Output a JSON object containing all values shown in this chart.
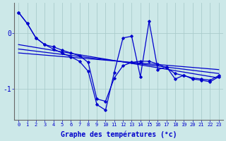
{
  "xlabel": "Graphe des températures (°c)",
  "background_color": "#cce8e8",
  "grid_color": "#aacccc",
  "line_color": "#0000cc",
  "x_ticks": [
    0,
    1,
    2,
    3,
    4,
    5,
    6,
    7,
    8,
    9,
    10,
    11,
    12,
    13,
    14,
    15,
    16,
    17,
    18,
    19,
    20,
    21,
    22,
    23
  ],
  "ylim": [
    -1.55,
    0.55
  ],
  "yticks": [
    -1,
    0
  ],
  "series_jagged": [
    0.38,
    0.18,
    -0.08,
    -0.2,
    -0.28,
    -0.35,
    -0.42,
    -0.5,
    -0.68,
    -1.28,
    -1.38,
    -0.7,
    -0.08,
    -0.05,
    -0.78,
    0.22,
    -0.65,
    -0.6,
    -0.82,
    -0.75,
    -0.82,
    -0.84,
    -0.87,
    -0.78
  ],
  "series_smooth": [
    0.38,
    0.18,
    -0.08,
    -0.2,
    -0.24,
    -0.3,
    -0.35,
    -0.4,
    -0.52,
    -1.18,
    -1.22,
    -0.8,
    -0.58,
    -0.52,
    -0.5,
    -0.5,
    -0.55,
    -0.62,
    -0.72,
    -0.76,
    -0.8,
    -0.82,
    -0.84,
    -0.76
  ],
  "trend_lines": [
    [
      0.0,
      -0.2,
      23.0,
      -0.8
    ],
    [
      0.0,
      -0.28,
      23.0,
      -0.72
    ],
    [
      0.0,
      -0.35,
      23.0,
      -0.65
    ]
  ]
}
